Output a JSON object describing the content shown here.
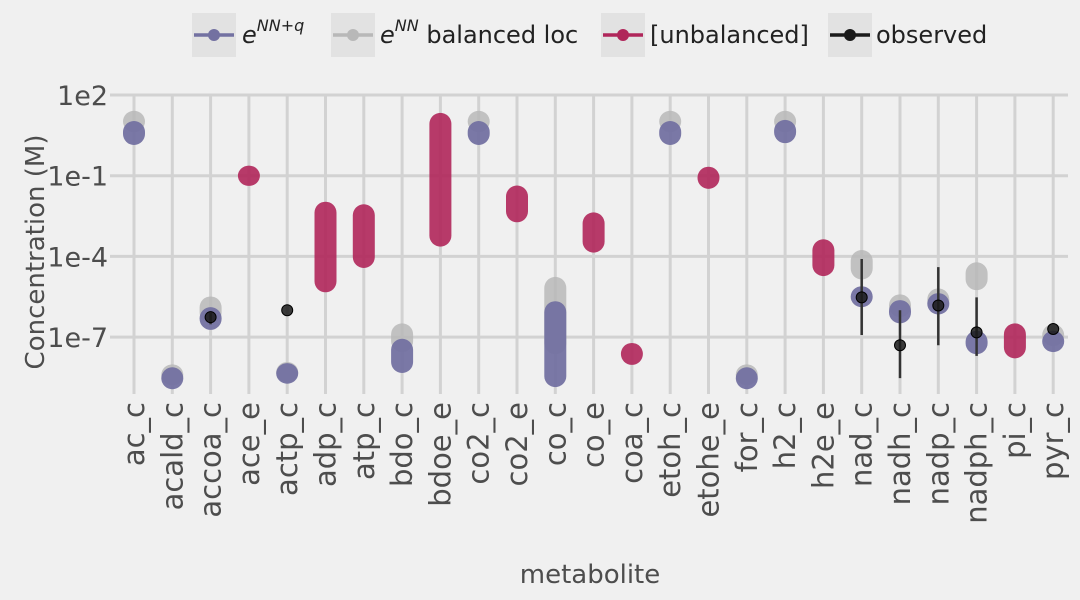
{
  "chart_data": {
    "type": "scatter",
    "xlabel": "metabolite",
    "ylabel": "Concentration (M)",
    "y_scale": "log10",
    "ylim": [
      1e-09,
      300.0
    ],
    "y_ticks": [
      {
        "value": 100,
        "label": "1e2"
      },
      {
        "value": 0.1,
        "label": "1e-1"
      },
      {
        "value": 0.0001,
        "label": "1e-4"
      },
      {
        "value": 1e-07,
        "label": "1e-7"
      }
    ],
    "grid": true,
    "legend_position": "top",
    "categories": [
      "ac_c",
      "acald_c",
      "accoa_c",
      "ace_e",
      "actp_c",
      "adp_c",
      "atp_c",
      "bdo_c",
      "bdoe_e",
      "co2_c",
      "co2_e",
      "co_c",
      "co_e",
      "coa_c",
      "etoh_c",
      "etohe_e",
      "for_c",
      "h2_c",
      "h2e_e",
      "nad_c",
      "nadh_c",
      "nadp_c",
      "nadph_c",
      "pi_c",
      "pyr_c"
    ],
    "series": [
      {
        "name": "e^{NN+q}",
        "legend_label_base": "e",
        "legend_label_sup": "NN+q",
        "color": "#7371a1",
        "ranges": [
          {
            "category": "ac_c",
            "min": 3,
            "max": 5
          },
          {
            "category": "acald_c",
            "min": 2.5e-09,
            "max": 3.5e-09
          },
          {
            "category": "accoa_c",
            "min": 4e-07,
            "max": 6e-07
          },
          {
            "category": "actp_c",
            "min": 4e-09,
            "max": 5e-09
          },
          {
            "category": "bdo_c",
            "min": 1e-08,
            "max": 4e-08
          },
          {
            "category": "co2_c",
            "min": 3,
            "max": 5
          },
          {
            "category": "co_c",
            "min": 3e-09,
            "max": 1e-06
          },
          {
            "category": "etoh_c",
            "min": 3,
            "max": 5
          },
          {
            "category": "for_c",
            "min": 2.5e-09,
            "max": 3.5e-09
          },
          {
            "category": "h2_c",
            "min": 3.5,
            "max": 5.5
          },
          {
            "category": "nad_c",
            "min": 2.8e-06,
            "max": 3.6e-06
          },
          {
            "category": "nadh_c",
            "min": 7e-07,
            "max": 1.1e-06
          },
          {
            "category": "nadp_c",
            "min": 1.5e-06,
            "max": 2e-06
          },
          {
            "category": "nadph_c",
            "min": 5e-08,
            "max": 8e-08
          },
          {
            "category": "pyr_c",
            "min": 6e-08,
            "max": 8e-08
          }
        ]
      },
      {
        "name": "e^{NN} balanced loc",
        "legend_label_base": "e",
        "legend_label_sup": "NN",
        "legend_label_rest": " balanced loc",
        "color": "#b8b8b8",
        "ranges": [
          {
            "category": "ac_c",
            "min": 9,
            "max": 12
          },
          {
            "category": "acald_c",
            "min": 3.5e-09,
            "max": 4.5e-09
          },
          {
            "category": "accoa_c",
            "min": 7e-07,
            "max": 1.5e-06
          },
          {
            "category": "actp_c",
            "min": 4.5e-09,
            "max": 5.5e-09
          },
          {
            "category": "bdo_c",
            "min": 6e-08,
            "max": 1.5e-07
          },
          {
            "category": "co2_c",
            "min": 9,
            "max": 12
          },
          {
            "category": "co_c",
            "min": 5e-08,
            "max": 8e-06
          },
          {
            "category": "etoh_c",
            "min": 9,
            "max": 12
          },
          {
            "category": "for_c",
            "min": 3.5e-09,
            "max": 4.5e-09
          },
          {
            "category": "h2_c",
            "min": 9,
            "max": 12
          },
          {
            "category": "nad_c",
            "min": 3e-05,
            "max": 8e-05
          },
          {
            "category": "nadh_c",
            "min": 1.2e-06,
            "max": 1.8e-06
          },
          {
            "category": "nadp_c",
            "min": 2e-06,
            "max": 3e-06
          },
          {
            "category": "nadph_c",
            "min": 1.2e-05,
            "max": 2.8e-05
          },
          {
            "category": "pyr_c",
            "min": 1e-07,
            "max": 1.4e-07
          }
        ]
      },
      {
        "name": "[unbalanced]",
        "color": "#b0265a",
        "ranges": [
          {
            "category": "ace_e",
            "min": 0.09,
            "max": 0.11
          },
          {
            "category": "adp_c",
            "min": 1e-05,
            "max": 0.005
          },
          {
            "category": "atp_c",
            "min": 8e-05,
            "max": 0.004
          },
          {
            "category": "bdoe_e",
            "min": 0.0005,
            "max": 10
          },
          {
            "category": "co2_e",
            "min": 0.004,
            "max": 0.02
          },
          {
            "category": "co_e",
            "min": 0.0003,
            "max": 0.002
          },
          {
            "category": "coa_c",
            "min": 2e-08,
            "max": 2.8e-08
          },
          {
            "category": "etohe_e",
            "min": 0.07,
            "max": 0.1
          },
          {
            "category": "h2e_e",
            "min": 4e-05,
            "max": 0.0002
          },
          {
            "category": "pi_c",
            "min": 3.5e-08,
            "max": 1.5e-07
          }
        ]
      },
      {
        "name": "observed",
        "color": "#1a1a1a",
        "points": [
          {
            "category": "accoa_c",
            "y": 5.5e-07,
            "low": 3e-07,
            "high": 8e-07
          },
          {
            "category": "actp_c",
            "y": 1e-06
          },
          {
            "category": "nad_c",
            "y": 3e-06,
            "low": 1.2e-07,
            "high": 8e-05
          },
          {
            "category": "nadh_c",
            "y": 5e-08,
            "low": 3e-09,
            "high": 1e-06
          },
          {
            "category": "nadp_c",
            "y": 1.5e-06,
            "low": 5e-08,
            "high": 4e-05
          },
          {
            "category": "nadph_c",
            "y": 1.5e-07,
            "low": 2e-08,
            "high": 3e-06
          },
          {
            "category": "pyr_c",
            "y": 2e-07
          }
        ]
      }
    ]
  }
}
